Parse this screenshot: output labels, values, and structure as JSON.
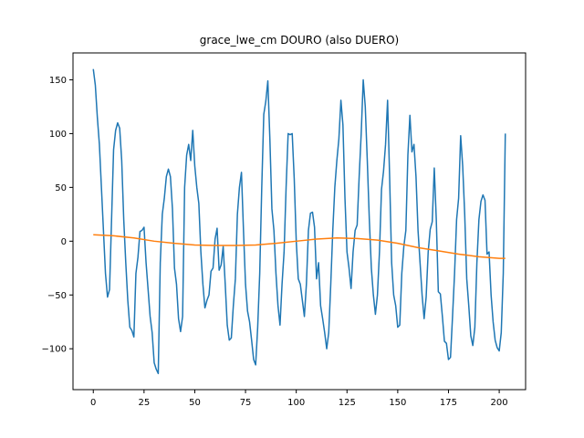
{
  "chart_data": {
    "type": "line",
    "title": "grace_lwe_cm DOURO (also DUERO)",
    "xlabel": "",
    "ylabel": "",
    "xlim": [
      -10,
      213
    ],
    "ylim": [
      -138,
      175
    ],
    "grid": false,
    "xticks": [
      0,
      25,
      50,
      75,
      100,
      125,
      150,
      175,
      200
    ],
    "yticks": [
      -100,
      -50,
      0,
      50,
      100,
      150
    ],
    "colors": {
      "series1": "#1f77b4",
      "series2": "#ff7f0e",
      "axes": "#000000"
    },
    "series": [
      {
        "name": "",
        "color": "#1f77b4",
        "points": [
          [
            0,
            160
          ],
          [
            1,
            145
          ],
          [
            2,
            115
          ],
          [
            3,
            90
          ],
          [
            4,
            50
          ],
          [
            5,
            10
          ],
          [
            6,
            -30
          ],
          [
            7,
            -52
          ],
          [
            8,
            -45
          ],
          [
            9,
            20
          ],
          [
            10,
            85
          ],
          [
            11,
            103
          ],
          [
            12,
            110
          ],
          [
            13,
            105
          ],
          [
            14,
            75
          ],
          [
            15,
            20
          ],
          [
            16,
            -20
          ],
          [
            17,
            -55
          ],
          [
            18,
            -80
          ],
          [
            19,
            -83
          ],
          [
            20,
            -89
          ],
          [
            21,
            -30
          ],
          [
            22,
            -15
          ],
          [
            23,
            9
          ],
          [
            24,
            10
          ],
          [
            25,
            13
          ],
          [
            26,
            -20
          ],
          [
            27,
            -45
          ],
          [
            28,
            -70
          ],
          [
            29,
            -85
          ],
          [
            30,
            -113
          ],
          [
            31,
            -119
          ],
          [
            32,
            -123
          ],
          [
            33,
            -20
          ],
          [
            34,
            25
          ],
          [
            35,
            40
          ],
          [
            36,
            60
          ],
          [
            37,
            67
          ],
          [
            38,
            60
          ],
          [
            39,
            30
          ],
          [
            40,
            -25
          ],
          [
            41,
            -40
          ],
          [
            42,
            -72
          ],
          [
            43,
            -84
          ],
          [
            44,
            -70
          ],
          [
            45,
            50
          ],
          [
            46,
            80
          ],
          [
            47,
            90
          ],
          [
            48,
            75
          ],
          [
            49,
            103
          ],
          [
            50,
            70
          ],
          [
            51,
            50
          ],
          [
            52,
            35
          ],
          [
            53,
            -10
          ],
          [
            54,
            -40
          ],
          [
            55,
            -62
          ],
          [
            56,
            -55
          ],
          [
            57,
            -50
          ],
          [
            58,
            -28
          ],
          [
            59,
            -25
          ],
          [
            60,
            2
          ],
          [
            61,
            12
          ],
          [
            62,
            -27
          ],
          [
            63,
            -22
          ],
          [
            64,
            -5
          ],
          [
            65,
            -40
          ],
          [
            66,
            -78
          ],
          [
            67,
            -92
          ],
          [
            68,
            -90
          ],
          [
            69,
            -60
          ],
          [
            70,
            -35
          ],
          [
            71,
            25
          ],
          [
            72,
            50
          ],
          [
            73,
            64
          ],
          [
            74,
            10
          ],
          [
            75,
            -40
          ],
          [
            76,
            -65
          ],
          [
            77,
            -75
          ],
          [
            78,
            -92
          ],
          [
            79,
            -110
          ],
          [
            80,
            -115
          ],
          [
            81,
            -80
          ],
          [
            82,
            -30
          ],
          [
            83,
            50
          ],
          [
            84,
            118
          ],
          [
            85,
            130
          ],
          [
            86,
            149
          ],
          [
            87,
            95
          ],
          [
            88,
            30
          ],
          [
            89,
            10
          ],
          [
            90,
            -30
          ],
          [
            91,
            -60
          ],
          [
            92,
            -78
          ],
          [
            93,
            -40
          ],
          [
            94,
            -10
          ],
          [
            95,
            50
          ],
          [
            96,
            100
          ],
          [
            97,
            99
          ],
          [
            98,
            100
          ],
          [
            99,
            58
          ],
          [
            100,
            0
          ],
          [
            101,
            -35
          ],
          [
            102,
            -40
          ],
          [
            103,
            -55
          ],
          [
            104,
            -70
          ],
          [
            105,
            -40
          ],
          [
            106,
            10
          ],
          [
            107,
            26
          ],
          [
            108,
            27
          ],
          [
            109,
            13
          ],
          [
            110,
            -35
          ],
          [
            111,
            -20
          ],
          [
            112,
            -60
          ],
          [
            113,
            -72
          ],
          [
            114,
            -85
          ],
          [
            115,
            -100
          ],
          [
            116,
            -85
          ],
          [
            117,
            -40
          ],
          [
            118,
            10
          ],
          [
            119,
            50
          ],
          [
            120,
            75
          ],
          [
            121,
            95
          ],
          [
            122,
            131
          ],
          [
            123,
            108
          ],
          [
            124,
            40
          ],
          [
            125,
            -10
          ],
          [
            126,
            -25
          ],
          [
            127,
            -44
          ],
          [
            128,
            -10
          ],
          [
            129,
            10
          ],
          [
            130,
            15
          ],
          [
            131,
            60
          ],
          [
            132,
            100
          ],
          [
            133,
            150
          ],
          [
            134,
            125
          ],
          [
            135,
            75
          ],
          [
            136,
            20
          ],
          [
            137,
            -25
          ],
          [
            138,
            -50
          ],
          [
            139,
            -68
          ],
          [
            140,
            -50
          ],
          [
            141,
            -10
          ],
          [
            142,
            48
          ],
          [
            143,
            65
          ],
          [
            144,
            90
          ],
          [
            145,
            131
          ],
          [
            146,
            60
          ],
          [
            147,
            -20
          ],
          [
            148,
            -50
          ],
          [
            149,
            -60
          ],
          [
            150,
            -80
          ],
          [
            151,
            -78
          ],
          [
            152,
            -30
          ],
          [
            153,
            -5
          ],
          [
            154,
            10
          ],
          [
            155,
            80
          ],
          [
            156,
            117
          ],
          [
            157,
            83
          ],
          [
            158,
            90
          ],
          [
            159,
            60
          ],
          [
            160,
            10
          ],
          [
            161,
            -20
          ],
          [
            162,
            -50
          ],
          [
            163,
            -72
          ],
          [
            164,
            -52
          ],
          [
            165,
            -10
          ],
          [
            166,
            11
          ],
          [
            167,
            18
          ],
          [
            168,
            68
          ],
          [
            169,
            20
          ],
          [
            170,
            -47
          ],
          [
            171,
            -49
          ],
          [
            172,
            -70
          ],
          [
            173,
            -93
          ],
          [
            174,
            -95
          ],
          [
            175,
            -110
          ],
          [
            176,
            -108
          ],
          [
            177,
            -70
          ],
          [
            178,
            -30
          ],
          [
            179,
            20
          ],
          [
            180,
            40
          ],
          [
            181,
            98
          ],
          [
            182,
            70
          ],
          [
            183,
            25
          ],
          [
            184,
            -35
          ],
          [
            185,
            -60
          ],
          [
            186,
            -88
          ],
          [
            187,
            -97
          ],
          [
            188,
            -80
          ],
          [
            189,
            -20
          ],
          [
            190,
            20
          ],
          [
            191,
            37
          ],
          [
            192,
            43
          ],
          [
            193,
            38
          ],
          [
            194,
            -12
          ],
          [
            195,
            -10
          ],
          [
            196,
            -50
          ],
          [
            197,
            -75
          ],
          [
            198,
            -92
          ],
          [
            199,
            -99
          ],
          [
            200,
            -102
          ],
          [
            201,
            -85
          ],
          [
            202,
            -30
          ],
          [
            203,
            100
          ]
        ]
      },
      {
        "name": "",
        "color": "#ff7f0e",
        "points": [
          [
            0,
            6
          ],
          [
            10,
            5
          ],
          [
            20,
            3
          ],
          [
            30,
            0
          ],
          [
            40,
            -2
          ],
          [
            50,
            -3.5
          ],
          [
            60,
            -4
          ],
          [
            70,
            -4
          ],
          [
            80,
            -3.5
          ],
          [
            90,
            -2
          ],
          [
            100,
            0
          ],
          [
            110,
            2
          ],
          [
            120,
            3
          ],
          [
            130,
            2.5
          ],
          [
            140,
            1
          ],
          [
            150,
            -2
          ],
          [
            160,
            -6
          ],
          [
            170,
            -9
          ],
          [
            180,
            -12
          ],
          [
            190,
            -14.5
          ],
          [
            200,
            -16
          ],
          [
            203,
            -16
          ]
        ]
      }
    ]
  }
}
